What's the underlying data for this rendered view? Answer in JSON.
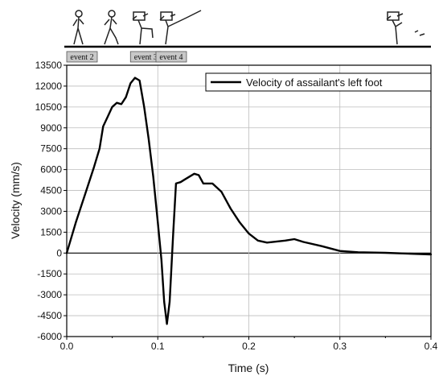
{
  "chart_data": {
    "type": "line",
    "title": "",
    "xlabel": "Time (s)",
    "ylabel": "Velocity (mm/s)",
    "xlim": [
      0.0,
      0.4
    ],
    "ylim": [
      -6000,
      13500
    ],
    "xticks": [
      "0.0",
      "0.1",
      "0.2",
      "0.3",
      "0.4"
    ],
    "yticks": [
      "-6000",
      "-4500",
      "-3000",
      "-1500",
      "0",
      "1500",
      "3000",
      "4500",
      "6000",
      "7500",
      "9000",
      "10500",
      "12000",
      "13500"
    ],
    "grid": true,
    "legend": {
      "position": "top-right"
    },
    "series": [
      {
        "name": "Velocity of assailant's left foot",
        "color": "#000000",
        "points": [
          [
            0.0,
            0
          ],
          [
            0.01,
            2200
          ],
          [
            0.02,
            4200
          ],
          [
            0.03,
            6200
          ],
          [
            0.036,
            7500
          ],
          [
            0.04,
            9100
          ],
          [
            0.045,
            9800
          ],
          [
            0.05,
            10500
          ],
          [
            0.055,
            10800
          ],
          [
            0.06,
            10700
          ],
          [
            0.065,
            11200
          ],
          [
            0.07,
            12200
          ],
          [
            0.075,
            12600
          ],
          [
            0.08,
            12400
          ],
          [
            0.085,
            10500
          ],
          [
            0.09,
            8200
          ],
          [
            0.095,
            5500
          ],
          [
            0.1,
            2200
          ],
          [
            0.104,
            -500
          ],
          [
            0.107,
            -3500
          ],
          [
            0.11,
            -5100
          ],
          [
            0.113,
            -3500
          ],
          [
            0.117,
            1500
          ],
          [
            0.12,
            5000
          ],
          [
            0.125,
            5100
          ],
          [
            0.13,
            5300
          ],
          [
            0.14,
            5700
          ],
          [
            0.145,
            5600
          ],
          [
            0.15,
            5000
          ],
          [
            0.16,
            5000
          ],
          [
            0.17,
            4400
          ],
          [
            0.18,
            3200
          ],
          [
            0.19,
            2200
          ],
          [
            0.2,
            1400
          ],
          [
            0.21,
            900
          ],
          [
            0.22,
            750
          ],
          [
            0.24,
            900
          ],
          [
            0.25,
            1000
          ],
          [
            0.26,
            800
          ],
          [
            0.28,
            500
          ],
          [
            0.3,
            150
          ],
          [
            0.32,
            60
          ],
          [
            0.35,
            20
          ],
          [
            0.4,
            -100
          ]
        ]
      }
    ],
    "event_labels": [
      {
        "text": "event 2",
        "x": 0.0
      },
      {
        "text": "event 3",
        "x": 0.07
      },
      {
        "text": "event 4",
        "x": 0.098
      }
    ]
  }
}
